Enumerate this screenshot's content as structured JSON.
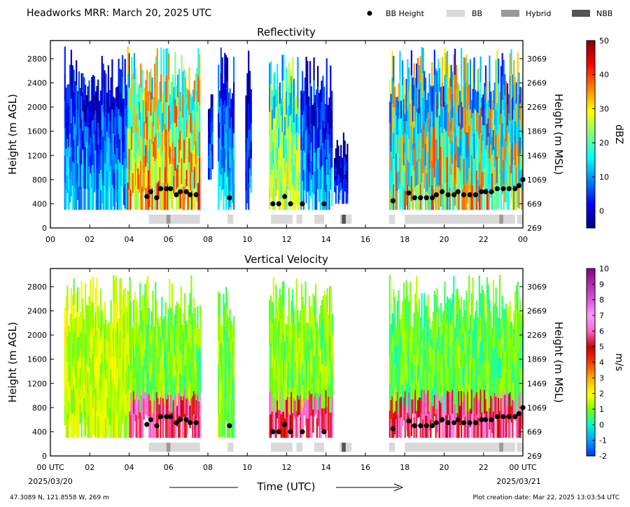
{
  "header": {
    "title": "Headworks MRR:  March 20, 2025 UTC",
    "legend": [
      {
        "label": "BB Height",
        "kind": "dot",
        "color": "#000000"
      },
      {
        "label": "BB",
        "kind": "swatch",
        "color": "#d9d9d9"
      },
      {
        "label": "Hybrid",
        "kind": "swatch",
        "color": "#999999"
      },
      {
        "label": "NBB",
        "kind": "swatch",
        "color": "#555555"
      }
    ]
  },
  "footer": {
    "location": "47.3089 N, 121.8558 W, 269 m",
    "creation": "Plot creation date: Mar 22, 2025 13:03:54 UTC",
    "xlabel": "Time (UTC)",
    "date_start": "2025/03/20",
    "date_end": "2025/03/21"
  },
  "chart_data": [
    {
      "type": "heatmap",
      "title": "Reflectivity",
      "xlabel": "",
      "ylabel": "Height (m AGL)",
      "ylabel_right": "Height (m MSL)",
      "xlim": [
        0,
        24
      ],
      "ylim": [
        0,
        3100
      ],
      "x_ticks": [
        "00",
        "02",
        "04",
        "06",
        "08",
        "10",
        "12",
        "14",
        "16",
        "18",
        "20",
        "22",
        "00"
      ],
      "y_ticks": [
        0,
        400,
        800,
        1200,
        1600,
        2000,
        2400,
        2800
      ],
      "y_ticks_right": [
        "269",
        "669",
        "1069",
        "1469",
        "1869",
        "2269",
        "2669",
        "3069"
      ],
      "colorbar": {
        "label": "dBZ",
        "min": -5,
        "max": 50,
        "ticks": [
          0,
          10,
          20,
          30,
          40,
          50
        ],
        "colormap": "jet"
      },
      "bb_height": [
        [
          4.9,
          520
        ],
        [
          5.1,
          600
        ],
        [
          5.4,
          500
        ],
        [
          5.6,
          650
        ],
        [
          5.9,
          650
        ],
        [
          6.1,
          650
        ],
        [
          6.4,
          550
        ],
        [
          6.6,
          600
        ],
        [
          6.9,
          600
        ],
        [
          7.1,
          550
        ],
        [
          7.4,
          550
        ],
        [
          9.1,
          500
        ],
        [
          11.3,
          400
        ],
        [
          11.6,
          400
        ],
        [
          11.9,
          520
        ],
        [
          12.2,
          400
        ],
        [
          12.8,
          400
        ],
        [
          13.9,
          400
        ],
        [
          17.4,
          450
        ],
        [
          18.2,
          580
        ],
        [
          18.5,
          500
        ],
        [
          18.8,
          500
        ],
        [
          19.1,
          500
        ],
        [
          19.4,
          500
        ],
        [
          19.6,
          550
        ],
        [
          19.9,
          600
        ],
        [
          20.2,
          550
        ],
        [
          20.5,
          550
        ],
        [
          20.7,
          600
        ],
        [
          21.0,
          550
        ],
        [
          21.3,
          550
        ],
        [
          21.6,
          550
        ],
        [
          21.9,
          600
        ],
        [
          22.1,
          600
        ],
        [
          22.4,
          600
        ],
        [
          22.7,
          650
        ],
        [
          23.0,
          650
        ],
        [
          23.3,
          650
        ],
        [
          23.6,
          650
        ],
        [
          23.8,
          700
        ],
        [
          24.0,
          800
        ]
      ],
      "bb_class": [
        {
          "start": 5.0,
          "end": 7.6,
          "class": "BB"
        },
        {
          "start": 5.9,
          "end": 6.1,
          "class": "Hybrid"
        },
        {
          "start": 9.0,
          "end": 9.3,
          "class": "BB"
        },
        {
          "start": 11.2,
          "end": 12.3,
          "class": "BB"
        },
        {
          "start": 12.5,
          "end": 12.8,
          "class": "BB"
        },
        {
          "start": 13.4,
          "end": 13.9,
          "class": "BB"
        },
        {
          "start": 14.7,
          "end": 15.3,
          "class": "BB"
        },
        {
          "start": 14.8,
          "end": 15.0,
          "class": "NBB"
        },
        {
          "start": 17.2,
          "end": 17.5,
          "class": "BB"
        },
        {
          "start": 18.0,
          "end": 23.6,
          "class": "BB"
        },
        {
          "start": 22.8,
          "end": 23.0,
          "class": "Hybrid"
        },
        {
          "start": 23.7,
          "end": 24.0,
          "class": "BB"
        }
      ],
      "echo_segments": [
        {
          "start": 0.7,
          "end": 4.0,
          "top": 3000,
          "bottom": 300,
          "base_dbz": 12
        },
        {
          "start": 3.9,
          "end": 7.6,
          "top": 3000,
          "bottom": 300,
          "base_dbz": 28,
          "core_dbz": 40
        },
        {
          "start": 8.0,
          "end": 8.2,
          "top": 2400,
          "bottom": 800,
          "base_dbz": 8
        },
        {
          "start": 8.5,
          "end": 9.3,
          "top": 3000,
          "bottom": 300,
          "base_dbz": 14
        },
        {
          "start": 9.9,
          "end": 10.2,
          "top": 3000,
          "bottom": 300,
          "base_dbz": 8
        },
        {
          "start": 11.1,
          "end": 12.6,
          "top": 3000,
          "bottom": 300,
          "base_dbz": 24,
          "core_dbz": 30
        },
        {
          "start": 12.7,
          "end": 14.3,
          "top": 2900,
          "bottom": 300,
          "base_dbz": 12
        },
        {
          "start": 14.4,
          "end": 15.1,
          "top": 1600,
          "bottom": 400,
          "base_dbz": 6
        },
        {
          "start": 17.2,
          "end": 24.0,
          "top": 3000,
          "bottom": 300,
          "base_dbz": 20,
          "core_dbz": 38
        }
      ]
    },
    {
      "type": "heatmap",
      "title": "Vertical Velocity",
      "xlabel": "Time (UTC)",
      "ylabel": "Height (m AGL)",
      "ylabel_right": "Height (m MSL)",
      "xlim": [
        0,
        24
      ],
      "ylim": [
        0,
        3100
      ],
      "x_ticks": [
        "00 UTC",
        "02",
        "04",
        "06",
        "08",
        "10",
        "12",
        "14",
        "16",
        "18",
        "20",
        "22",
        "00 UTC"
      ],
      "y_ticks": [
        0,
        400,
        800,
        1200,
        1600,
        2000,
        2400,
        2800
      ],
      "y_ticks_right": [
        "269",
        "669",
        "1069",
        "1469",
        "1869",
        "2269",
        "2669",
        "3069"
      ],
      "colorbar": {
        "label": "m/s",
        "min": -2,
        "max": 10,
        "ticks": [
          -2,
          -1,
          0,
          1,
          2,
          3,
          4,
          5,
          6,
          7,
          8,
          9,
          10
        ]
      },
      "bb_height": "same as Reflectivity",
      "echo_segments": [
        {
          "start": 0.7,
          "end": 4.0,
          "top": 3000,
          "bottom": 300,
          "base_ms": 1.5
        },
        {
          "start": 4.0,
          "end": 7.6,
          "top": 3000,
          "bottom": 300,
          "base_ms": 1.0,
          "rain_ms": 5
        },
        {
          "start": 8.5,
          "end": 9.3,
          "top": 3000,
          "bottom": 300,
          "base_ms": 1.0
        },
        {
          "start": 11.1,
          "end": 14.3,
          "top": 3000,
          "bottom": 300,
          "base_ms": 1.0,
          "rain_ms": 5
        },
        {
          "start": 17.2,
          "end": 24.0,
          "top": 3000,
          "bottom": 300,
          "base_ms": 0.8,
          "rain_ms": 5
        }
      ]
    }
  ]
}
